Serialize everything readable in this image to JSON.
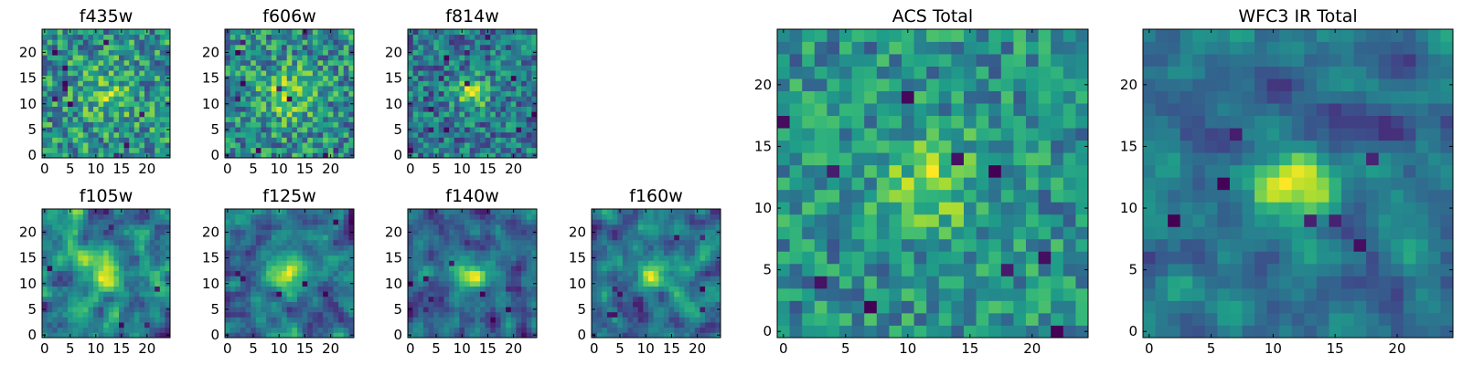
{
  "chart_data": [
    {
      "type": "heatmap",
      "title": "f435w",
      "xlim": [
        -0.5,
        24.5
      ],
      "ylim": [
        -0.5,
        24.5
      ],
      "xticks": [
        0,
        5,
        10,
        15,
        20
      ],
      "yticks": [
        0,
        5,
        10,
        15,
        20
      ],
      "source": {
        "seed": 11,
        "peak": 0.25,
        "sigma": 3.5,
        "noise": 0.42,
        "smooth": 0,
        "base": 0.6,
        "lows": 10
      }
    },
    {
      "type": "heatmap",
      "title": "f606w",
      "xlim": [
        -0.5,
        24.5
      ],
      "ylim": [
        -0.5,
        24.5
      ],
      "xticks": [
        0,
        5,
        10,
        15,
        20
      ],
      "yticks": [
        0,
        5,
        10,
        15,
        20
      ],
      "source": {
        "seed": 23,
        "peak": 0.35,
        "sigma": 3.5,
        "noise": 0.4,
        "smooth": 0,
        "base": 0.55,
        "lows": 10
      }
    },
    {
      "type": "heatmap",
      "title": "f814w",
      "xlim": [
        -0.5,
        24.5
      ],
      "ylim": [
        -0.5,
        24.5
      ],
      "xticks": [
        0,
        5,
        10,
        15,
        20
      ],
      "yticks": [
        0,
        5,
        10,
        15,
        20
      ],
      "source": {
        "seed": 37,
        "peak": 0.55,
        "sigma": 2.2,
        "noise": 0.4,
        "smooth": 0,
        "base": 0.5,
        "lows": 12
      }
    },
    {
      "type": "heatmap",
      "title": "f105w",
      "xlim": [
        -0.5,
        24.5
      ],
      "ylim": [
        -0.5,
        24.5
      ],
      "xticks": [
        0,
        5,
        10,
        15,
        20
      ],
      "yticks": [
        0,
        5,
        10,
        15,
        20
      ],
      "source": {
        "seed": 41,
        "peak": 0.55,
        "sigma": 2.5,
        "noise": 0.55,
        "smooth": 1,
        "base": 0.45,
        "lows": 6
      }
    },
    {
      "type": "heatmap",
      "title": "f125w",
      "xlim": [
        -0.5,
        24.5
      ],
      "ylim": [
        -0.5,
        24.5
      ],
      "xticks": [
        0,
        5,
        10,
        15,
        20
      ],
      "yticks": [
        0,
        5,
        10,
        15,
        20
      ],
      "source": {
        "seed": 53,
        "peak": 0.5,
        "sigma": 3.0,
        "noise": 0.55,
        "smooth": 1,
        "base": 0.5,
        "lows": 6
      }
    },
    {
      "type": "heatmap",
      "title": "f140w",
      "xlim": [
        -0.5,
        24.5
      ],
      "ylim": [
        -0.5,
        24.5
      ],
      "xticks": [
        0,
        5,
        10,
        15,
        20
      ],
      "yticks": [
        0,
        5,
        10,
        15,
        20
      ],
      "source": {
        "seed": 67,
        "peak": 0.6,
        "sigma": 2.2,
        "noise": 0.55,
        "smooth": 1,
        "base": 0.4,
        "lows": 8
      }
    },
    {
      "type": "heatmap",
      "title": "f160w",
      "xlim": [
        -0.5,
        24.5
      ],
      "ylim": [
        -0.5,
        24.5
      ],
      "xticks": [
        0,
        5,
        10,
        15,
        20
      ],
      "yticks": [
        0,
        5,
        10,
        15,
        20
      ],
      "source": {
        "seed": 79,
        "peak": 0.6,
        "sigma": 2.2,
        "noise": 0.55,
        "smooth": 1,
        "base": 0.45,
        "lows": 8
      }
    },
    {
      "type": "heatmap",
      "title": "ACS Total",
      "xlim": [
        -0.5,
        24.5
      ],
      "ylim": [
        -0.5,
        24.5
      ],
      "xticks": [
        0,
        5,
        10,
        15,
        20
      ],
      "yticks": [
        0,
        5,
        10,
        15,
        20
      ],
      "source": {
        "seed": 83,
        "peak": 0.35,
        "sigma": 3.0,
        "noise": 0.35,
        "smooth": 0,
        "base": 0.6,
        "lows": 10
      }
    },
    {
      "type": "heatmap",
      "title": "WFC3 IR Total",
      "xlim": [
        -0.5,
        24.5
      ],
      "ylim": [
        -0.5,
        24.5
      ],
      "xticks": [
        0,
        5,
        10,
        15,
        20
      ],
      "yticks": [
        0,
        5,
        10,
        15,
        20
      ],
      "source": {
        "seed": 97,
        "peak": 0.65,
        "sigma": 2.0,
        "noise": 0.4,
        "smooth": 1,
        "base": 0.4,
        "lows": 7
      }
    }
  ]
}
